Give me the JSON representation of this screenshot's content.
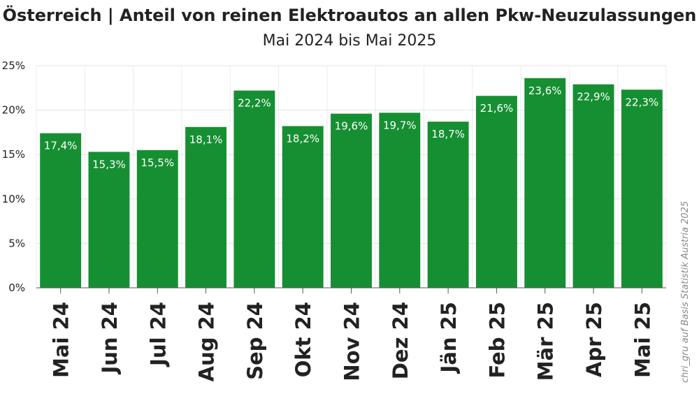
{
  "chart_data": {
    "type": "bar",
    "title": "Österreich | Anteil von reinen Elektroautos an allen Pkw-Neuzulassungen",
    "subtitle": "Mai 2024 bis Mai 2025",
    "categories": [
      "Mai 24",
      "Jun 24",
      "Jul 24",
      "Aug 24",
      "Sep 24",
      "Okt 24",
      "Nov 24",
      "Dez 24",
      "Jän 25",
      "Feb 25",
      "Mär 25",
      "Apr 25",
      "Mai 25"
    ],
    "values": [
      17.4,
      15.3,
      15.5,
      18.1,
      22.2,
      18.2,
      19.6,
      19.7,
      18.7,
      21.6,
      23.6,
      22.9,
      22.3
    ],
    "data_labels": [
      "17,4%",
      "15,3%",
      "15,5%",
      "18,1%",
      "22,2%",
      "18,2%",
      "19,6%",
      "19,7%",
      "18,7%",
      "21,6%",
      "23,6%",
      "22,9%",
      "22,3%"
    ],
    "yticks": [
      0,
      5,
      10,
      15,
      20,
      25
    ],
    "ytick_labels": [
      "0%",
      "5%",
      "10%",
      "15%",
      "20%",
      "25%"
    ],
    "ylim": [
      0,
      25
    ],
    "grid": true,
    "bar_color": "#168f33",
    "source": "chri_gru auf Basis Statistik Austria 2025"
  }
}
